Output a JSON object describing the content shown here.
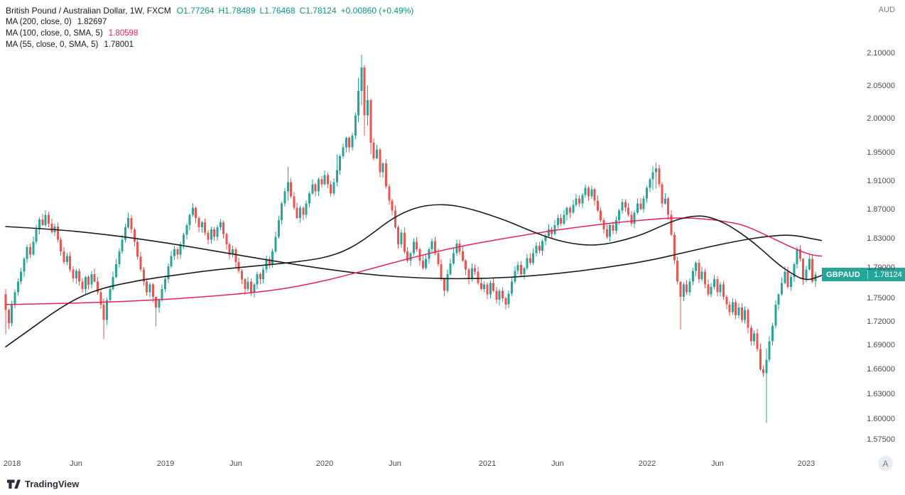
{
  "header": {
    "symbol_title": "British Pound / Australian Dollar, 1W, FXCM",
    "open": "O1.77264",
    "high": "H1.78489",
    "low": "L1.76468",
    "close": "C1.78124",
    "change": "+0.00860 (+0.49%)",
    "indicators": [
      {
        "label": "MA (200, close, 0)",
        "value": "1.82697",
        "value_color": "#131722"
      },
      {
        "label": "MA (100, close, 0, SMA, 5)",
        "value": "1.80598",
        "value_color": "#e91e63"
      },
      {
        "label": "MA (55, close, 0, SMA, 5)",
        "value": "1.78001",
        "value_color": "#131722"
      }
    ]
  },
  "colors": {
    "up": "#26a69a",
    "down": "#ef5350",
    "header_quote": "#089981",
    "ma_black": "#1b1b1b",
    "ma_pink": "#e91e63",
    "badge_bg": "#26a69a",
    "axis_text": "#4a4a52"
  },
  "price_axis": {
    "currency": "AUD",
    "labels": [
      "2.10000",
      "2.05000",
      "2.00000",
      "1.95000",
      "1.91000",
      "1.87000",
      "1.83000",
      "1.79000",
      "1.75000",
      "1.72000",
      "1.69000",
      "1.66000",
      "1.63000",
      "1.60000",
      "1.57500"
    ]
  },
  "time_axis": {
    "ticks": [
      {
        "label": "2018",
        "week": 2
      },
      {
        "label": "Jun",
        "week": 23
      },
      {
        "label": "2019",
        "week": 52
      },
      {
        "label": "Jun",
        "week": 75
      },
      {
        "label": "2020",
        "week": 104
      },
      {
        "label": "Jun",
        "week": 127
      },
      {
        "label": "2021",
        "week": 157
      },
      {
        "label": "Jun",
        "week": 180
      },
      {
        "label": "2022",
        "week": 209
      },
      {
        "label": "Jun",
        "week": 232
      },
      {
        "label": "2023",
        "week": 261
      }
    ]
  },
  "price_label": {
    "symbol": "GBPAUD",
    "value": "1.78124"
  },
  "footer": {
    "brand": "TradingView"
  },
  "corner_button": {
    "label": "A"
  },
  "chart_data": {
    "type": "candlestick",
    "symbol": "GBPAUD",
    "timeframe": "1W",
    "exchange": "FXCM",
    "y_scale": "log",
    "y_domain": [
      1.558,
      2.185
    ],
    "x_domain": [
      0,
      266
    ],
    "x_unit": "weeks since Jan 2018",
    "first_open": 1.755,
    "closes": [
      1.735,
      1.718,
      1.742,
      1.758,
      1.772,
      1.785,
      1.802,
      1.818,
      1.808,
      1.825,
      1.842,
      1.856,
      1.848,
      1.862,
      1.85,
      1.838,
      1.846,
      1.828,
      1.812,
      1.798,
      1.806,
      1.788,
      1.776,
      1.786,
      1.772,
      1.762,
      1.778,
      1.768,
      1.782,
      1.772,
      1.758,
      1.742,
      1.722,
      1.748,
      1.762,
      1.778,
      1.795,
      1.812,
      1.828,
      1.845,
      1.858,
      1.842,
      1.825,
      1.805,
      1.788,
      1.772,
      1.758,
      1.768,
      1.752,
      1.738,
      1.748,
      1.762,
      1.775,
      1.792,
      1.806,
      1.815,
      1.808,
      1.822,
      1.835,
      1.848,
      1.862,
      1.872,
      1.858,
      1.845,
      1.852,
      1.838,
      1.828,
      1.842,
      1.832,
      1.845,
      1.852,
      1.836,
      1.822,
      1.808,
      1.815,
      1.798,
      1.786,
      1.775,
      1.762,
      1.772,
      1.758,
      1.768,
      1.782,
      1.775,
      1.788,
      1.802,
      1.795,
      1.812,
      1.832,
      1.855,
      1.878,
      1.895,
      1.908,
      1.888,
      1.872,
      1.858,
      1.872,
      1.862,
      1.878,
      1.892,
      1.905,
      1.895,
      1.912,
      1.905,
      1.918,
      1.905,
      1.892,
      1.908,
      1.925,
      1.945,
      1.958,
      1.972,
      1.958,
      1.975,
      2.005,
      2.042,
      2.078,
      2.005,
      2.028,
      1.965,
      1.942,
      1.955,
      1.922,
      1.935,
      1.902,
      1.882,
      1.868,
      1.845,
      1.822,
      1.838,
      1.812,
      1.8,
      1.81,
      1.825,
      1.815,
      1.8,
      1.79,
      1.802,
      1.815,
      1.826,
      1.81,
      1.795,
      1.775,
      1.76,
      1.782,
      1.796,
      1.81,
      1.823,
      1.812,
      1.8,
      1.788,
      1.775,
      1.79,
      1.785,
      1.77,
      1.762,
      1.768,
      1.755,
      1.77,
      1.76,
      1.748,
      1.76,
      1.75,
      1.742,
      1.756,
      1.772,
      1.786,
      1.794,
      1.782,
      1.79,
      1.803,
      1.797,
      1.81,
      1.82,
      1.813,
      1.826,
      1.833,
      1.842,
      1.836,
      1.848,
      1.858,
      1.85,
      1.862,
      1.872,
      1.865,
      1.876,
      1.885,
      1.878,
      1.89,
      1.9,
      1.888,
      1.898,
      1.882,
      1.868,
      1.855,
      1.842,
      1.832,
      1.848,
      1.84,
      1.855,
      1.868,
      1.88,
      1.872,
      1.862,
      1.85,
      1.865,
      1.878,
      1.87,
      1.885,
      1.9,
      1.912,
      1.922,
      1.928,
      1.905,
      1.878,
      1.885,
      1.862,
      1.835,
      1.8,
      1.772,
      1.752,
      1.768,
      1.758,
      1.772,
      1.786,
      1.797,
      1.775,
      1.785,
      1.768,
      1.755,
      1.765,
      1.775,
      1.758,
      1.768,
      1.752,
      1.742,
      1.732,
      1.745,
      1.728,
      1.738,
      1.722,
      1.735,
      1.712,
      1.695,
      1.705,
      1.685,
      1.66,
      1.655,
      1.672,
      1.695,
      1.715,
      1.742,
      1.755,
      1.77,
      1.785,
      1.765,
      1.778,
      1.795,
      1.815,
      1.802,
      1.775,
      1.788,
      1.802,
      1.772,
      1.78124
    ],
    "wick_overrides": {
      "0": [
        1.762,
        1.704
      ],
      "32": [
        1.75,
        1.698
      ],
      "49": [
        1.752,
        1.714
      ],
      "92": [
        1.93,
        1.882
      ],
      "108": [
        1.948,
        1.902
      ],
      "115": [
        2.062,
        1.995
      ],
      "116": [
        2.098,
        2.02
      ],
      "117": [
        2.082,
        1.975
      ],
      "118": [
        2.05,
        1.99
      ],
      "119": [
        2.03,
        1.948
      ],
      "211": [
        1.931,
        1.897
      ],
      "212": [
        1.936,
        1.899
      ],
      "220": [
        1.77,
        1.71
      ],
      "248": [
        1.686,
        1.595
      ]
    },
    "last_candle": {
      "open": 1.77264,
      "high": 1.78489,
      "low": 1.76468,
      "close": 1.78124
    },
    "series": [
      {
        "name": "MA200",
        "color": "#1b1b1b",
        "width": 1.6,
        "points": [
          [
            0,
            1.846
          ],
          [
            15,
            1.8425
          ],
          [
            30,
            1.8365
          ],
          [
            45,
            1.8285
          ],
          [
            60,
            1.8185
          ],
          [
            75,
            1.808
          ],
          [
            90,
            1.7975
          ],
          [
            105,
            1.788
          ],
          [
            120,
            1.7805
          ],
          [
            135,
            1.7765
          ],
          [
            150,
            1.7755
          ],
          [
            165,
            1.7775
          ],
          [
            180,
            1.7825
          ],
          [
            195,
            1.79
          ],
          [
            210,
            1.8
          ],
          [
            220,
            1.8095
          ],
          [
            230,
            1.819
          ],
          [
            240,
            1.8275
          ],
          [
            248,
            1.8325
          ],
          [
            254,
            1.8345
          ],
          [
            258,
            1.8335
          ],
          [
            261,
            1.831
          ],
          [
            264,
            1.8285
          ],
          [
            266,
            1.827
          ]
        ]
      },
      {
        "name": "MA100",
        "color": "#e91e63",
        "width": 1.5,
        "points": [
          [
            0,
            1.742
          ],
          [
            20,
            1.7435
          ],
          [
            40,
            1.746
          ],
          [
            60,
            1.7505
          ],
          [
            80,
            1.757
          ],
          [
            90,
            1.762
          ],
          [
            100,
            1.7695
          ],
          [
            110,
            1.779
          ],
          [
            120,
            1.79
          ],
          [
            130,
            1.801
          ],
          [
            140,
            1.8115
          ],
          [
            150,
            1.8205
          ],
          [
            160,
            1.828
          ],
          [
            170,
            1.835
          ],
          [
            180,
            1.8415
          ],
          [
            190,
            1.847
          ],
          [
            200,
            1.852
          ],
          [
            208,
            1.855
          ],
          [
            215,
            1.8575
          ],
          [
            222,
            1.858
          ],
          [
            228,
            1.8565
          ],
          [
            234,
            1.8535
          ],
          [
            240,
            1.849
          ],
          [
            246,
            1.838
          ],
          [
            251,
            1.828
          ],
          [
            255,
            1.82
          ],
          [
            258,
            1.8145
          ],
          [
            261,
            1.8095
          ],
          [
            264,
            1.8065
          ],
          [
            266,
            1.806
          ]
        ]
      },
      {
        "name": "MA55",
        "color": "#1b1b1b",
        "width": 1.6,
        "points": [
          [
            0,
            1.688
          ],
          [
            8,
            1.71
          ],
          [
            16,
            1.733
          ],
          [
            24,
            1.752
          ],
          [
            32,
            1.764
          ],
          [
            44,
            1.774
          ],
          [
            56,
            1.781
          ],
          [
            68,
            1.7875
          ],
          [
            80,
            1.792
          ],
          [
            90,
            1.796
          ],
          [
            100,
            1.801
          ],
          [
            105,
            1.805
          ],
          [
            110,
            1.812
          ],
          [
            115,
            1.823
          ],
          [
            120,
            1.838
          ],
          [
            125,
            1.854
          ],
          [
            130,
            1.866
          ],
          [
            135,
            1.8735
          ],
          [
            140,
            1.8765
          ],
          [
            145,
            1.876
          ],
          [
            150,
            1.872
          ],
          [
            155,
            1.866
          ],
          [
            160,
            1.859
          ],
          [
            165,
            1.851
          ],
          [
            170,
            1.842
          ],
          [
            175,
            1.834
          ],
          [
            180,
            1.827
          ],
          [
            185,
            1.8225
          ],
          [
            190,
            1.8205
          ],
          [
            195,
            1.8215
          ],
          [
            200,
            1.826
          ],
          [
            204,
            1.8305
          ],
          [
            208,
            1.836
          ],
          [
            212,
            1.8435
          ],
          [
            216,
            1.851
          ],
          [
            220,
            1.857
          ],
          [
            224,
            1.8605
          ],
          [
            228,
            1.8605
          ],
          [
            232,
            1.8555
          ],
          [
            236,
            1.847
          ],
          [
            240,
            1.836
          ],
          [
            244,
            1.8235
          ],
          [
            248,
            1.809
          ],
          [
            252,
            1.7945
          ],
          [
            255,
            1.786
          ],
          [
            258,
            1.7785
          ],
          [
            260,
            1.775
          ],
          [
            262,
            1.7745
          ],
          [
            264,
            1.777
          ],
          [
            266,
            1.78
          ]
        ]
      }
    ]
  }
}
